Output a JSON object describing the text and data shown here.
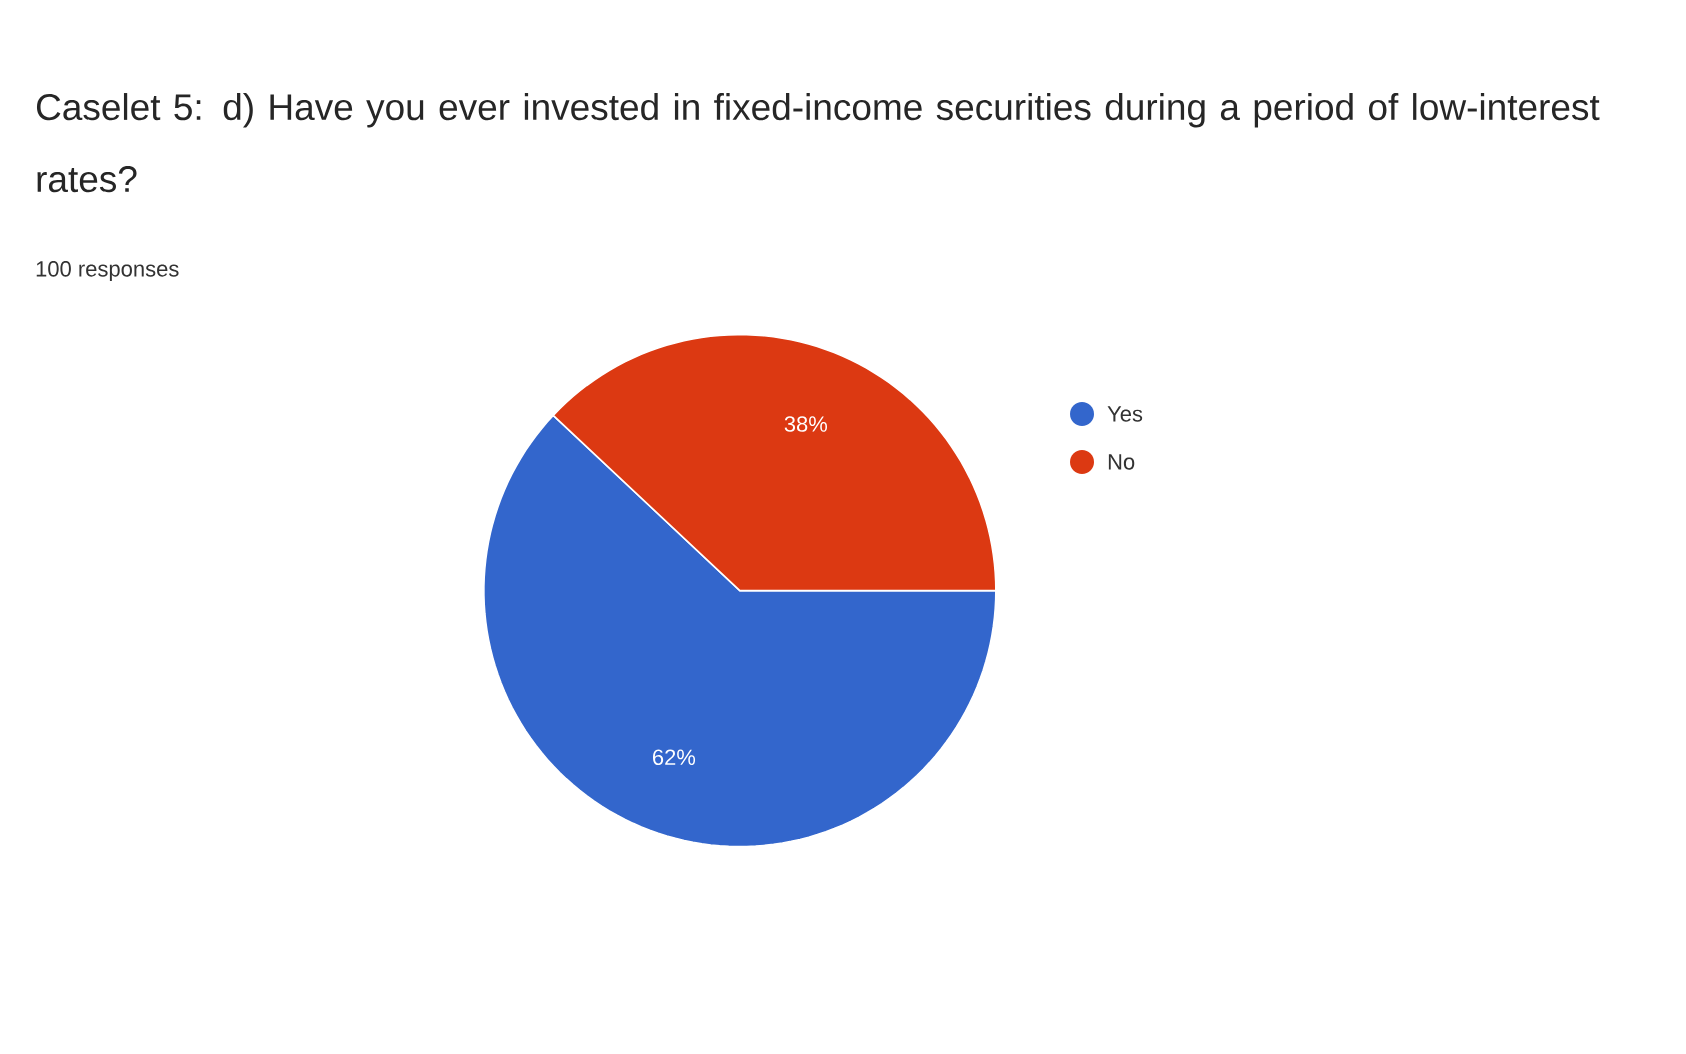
{
  "chart_data": {
    "type": "pie",
    "title": "Caselet 5: d)  Have you ever invested in fixed-income securities during a period of low-interest rates?",
    "subtitle": "100 responses",
    "categories": [
      "Yes",
      "No"
    ],
    "values": [
      62,
      38
    ],
    "colors": [
      "#3366cc",
      "#dc3912"
    ],
    "value_labels": [
      "62%",
      "38%"
    ],
    "legend": "right"
  }
}
